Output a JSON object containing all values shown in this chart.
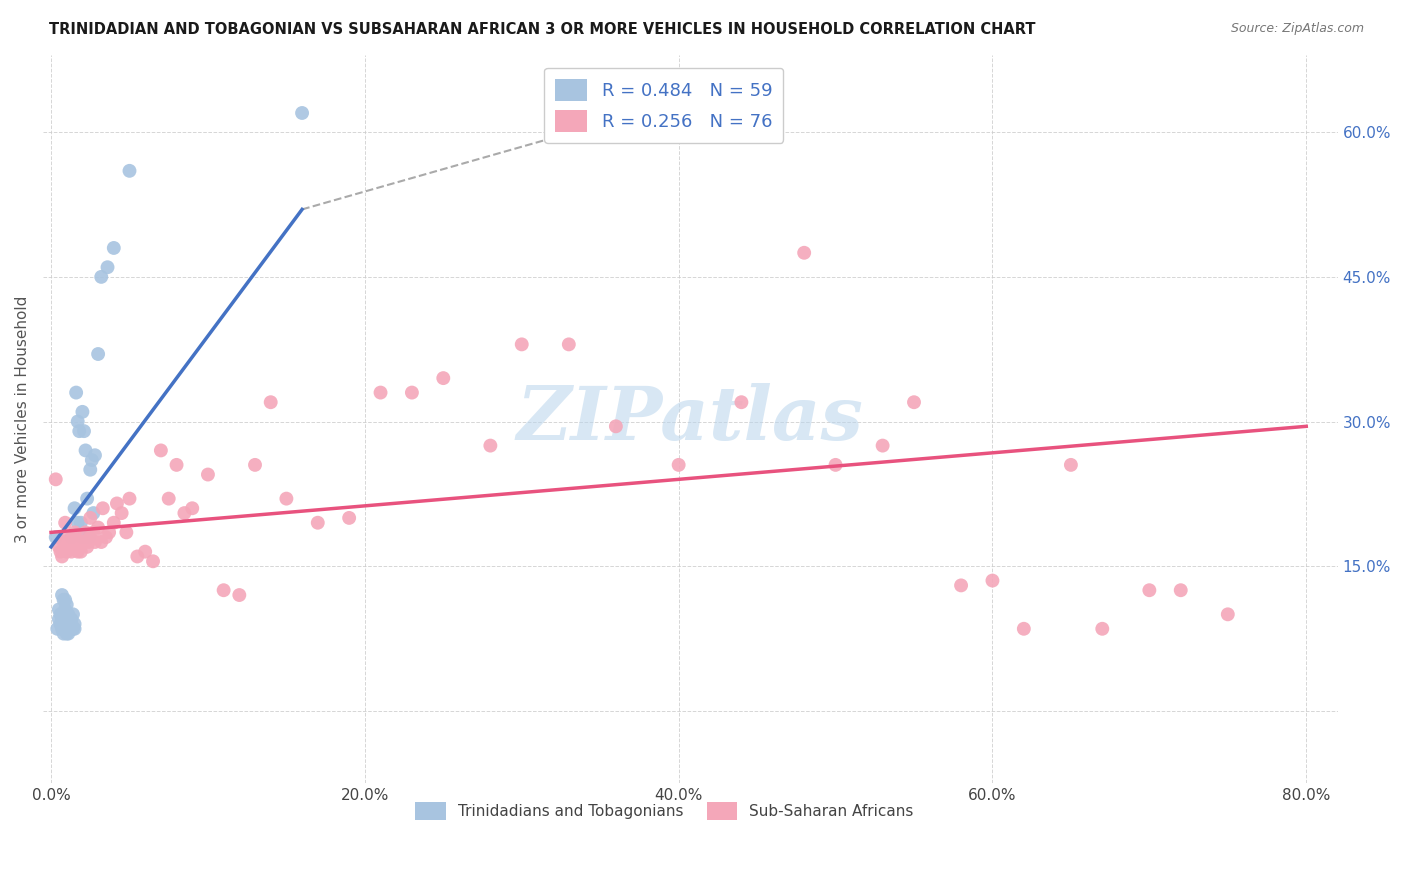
{
  "title": "TRINIDADIAN AND TOBAGONIAN VS SUBSAHARAN AFRICAN 3 OR MORE VEHICLES IN HOUSEHOLD CORRELATION CHART",
  "source": "Source: ZipAtlas.com",
  "ylabel": "3 or more Vehicles in Household",
  "right_ytick_labels": [
    "60.0%",
    "45.0%",
    "30.0%",
    "15.0%"
  ],
  "right_ytick_vals": [
    0.6,
    0.45,
    0.3,
    0.15
  ],
  "xlim": [
    -0.005,
    0.82
  ],
  "ylim": [
    -0.075,
    0.68
  ],
  "ytick_vals": [
    0.0,
    0.15,
    0.3,
    0.45,
    0.6
  ],
  "xtick_vals": [
    0.0,
    0.2,
    0.4,
    0.6,
    0.8
  ],
  "xtick_labels": [
    "0.0%",
    "20.0%",
    "40.0%",
    "60.0%",
    "80.0%"
  ],
  "legend_r1": "R = 0.484",
  "legend_n1": "N = 59",
  "legend_r2": "R = 0.256",
  "legend_n2": "N = 76",
  "color_blue": "#a8c4e0",
  "color_pink": "#f4a7b9",
  "line_color_blue": "#4472c4",
  "line_color_pink": "#e8527e",
  "watermark": "ZIPatlas",
  "blue_line_x0": 0.0,
  "blue_line_y0": 0.17,
  "blue_line_x1": 0.16,
  "blue_line_y1": 0.52,
  "blue_line_ext_x1": 0.44,
  "blue_line_ext_y1": 0.65,
  "pink_line_x0": 0.0,
  "pink_line_y0": 0.185,
  "pink_line_x1": 0.8,
  "pink_line_y1": 0.295,
  "blue_scatter_x": [
    0.003,
    0.004,
    0.005,
    0.005,
    0.006,
    0.006,
    0.007,
    0.007,
    0.007,
    0.008,
    0.008,
    0.008,
    0.008,
    0.009,
    0.009,
    0.009,
    0.009,
    0.009,
    0.01,
    0.01,
    0.01,
    0.01,
    0.01,
    0.011,
    0.011,
    0.011,
    0.012,
    0.012,
    0.012,
    0.013,
    0.013,
    0.013,
    0.013,
    0.014,
    0.014,
    0.015,
    0.015,
    0.015,
    0.016,
    0.017,
    0.017,
    0.018,
    0.019,
    0.02,
    0.02,
    0.021,
    0.022,
    0.023,
    0.024,
    0.025,
    0.026,
    0.027,
    0.028,
    0.03,
    0.032,
    0.036,
    0.04,
    0.05,
    0.16
  ],
  "blue_scatter_y": [
    0.18,
    0.085,
    0.095,
    0.105,
    0.09,
    0.1,
    0.085,
    0.095,
    0.12,
    0.08,
    0.09,
    0.1,
    0.115,
    0.085,
    0.09,
    0.095,
    0.105,
    0.115,
    0.08,
    0.085,
    0.09,
    0.095,
    0.11,
    0.08,
    0.09,
    0.1,
    0.085,
    0.09,
    0.095,
    0.085,
    0.09,
    0.095,
    0.18,
    0.085,
    0.1,
    0.085,
    0.09,
    0.21,
    0.33,
    0.3,
    0.195,
    0.29,
    0.195,
    0.18,
    0.31,
    0.29,
    0.27,
    0.22,
    0.18,
    0.25,
    0.26,
    0.205,
    0.265,
    0.37,
    0.45,
    0.46,
    0.48,
    0.56,
    0.62
  ],
  "pink_scatter_x": [
    0.003,
    0.005,
    0.006,
    0.007,
    0.008,
    0.009,
    0.009,
    0.01,
    0.01,
    0.011,
    0.012,
    0.012,
    0.013,
    0.014,
    0.015,
    0.015,
    0.016,
    0.017,
    0.018,
    0.019,
    0.02,
    0.021,
    0.022,
    0.023,
    0.024,
    0.025,
    0.025,
    0.027,
    0.028,
    0.03,
    0.032,
    0.033,
    0.035,
    0.037,
    0.04,
    0.042,
    0.045,
    0.048,
    0.05,
    0.055,
    0.06,
    0.065,
    0.07,
    0.075,
    0.08,
    0.085,
    0.09,
    0.1,
    0.11,
    0.12,
    0.13,
    0.14,
    0.15,
    0.17,
    0.19,
    0.21,
    0.23,
    0.25,
    0.28,
    0.3,
    0.33,
    0.36,
    0.4,
    0.44,
    0.48,
    0.5,
    0.53,
    0.55,
    0.58,
    0.6,
    0.62,
    0.65,
    0.67,
    0.7,
    0.72,
    0.75
  ],
  "pink_scatter_y": [
    0.24,
    0.17,
    0.165,
    0.16,
    0.175,
    0.17,
    0.195,
    0.165,
    0.18,
    0.175,
    0.17,
    0.175,
    0.165,
    0.18,
    0.17,
    0.185,
    0.17,
    0.165,
    0.175,
    0.165,
    0.175,
    0.175,
    0.185,
    0.17,
    0.175,
    0.18,
    0.2,
    0.185,
    0.175,
    0.19,
    0.175,
    0.21,
    0.18,
    0.185,
    0.195,
    0.215,
    0.205,
    0.185,
    0.22,
    0.16,
    0.165,
    0.155,
    0.27,
    0.22,
    0.255,
    0.205,
    0.21,
    0.245,
    0.125,
    0.12,
    0.255,
    0.32,
    0.22,
    0.195,
    0.2,
    0.33,
    0.33,
    0.345,
    0.275,
    0.38,
    0.38,
    0.295,
    0.255,
    0.32,
    0.475,
    0.255,
    0.275,
    0.32,
    0.13,
    0.135,
    0.085,
    0.255,
    0.085,
    0.125,
    0.125,
    0.1
  ]
}
